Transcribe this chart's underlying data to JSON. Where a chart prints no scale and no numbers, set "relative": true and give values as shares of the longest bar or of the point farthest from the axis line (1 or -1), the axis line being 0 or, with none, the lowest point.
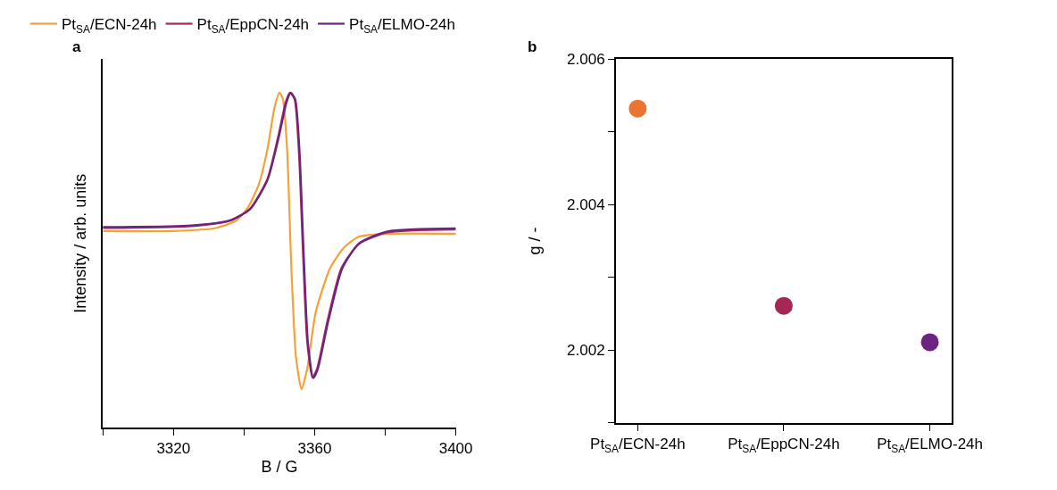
{
  "chart_data": [
    {
      "type": "line",
      "title": "a",
      "xlabel": "B / G",
      "ylabel": "Intensity / arb. units",
      "relative": true,
      "legend": "top left",
      "line_style": "solid",
      "xlim": [
        3300,
        3400
      ],
      "xticks": [
        {
          "value": 3300,
          "label": null
        },
        3320,
        {
          "value": 3340,
          "label": null
        },
        3360,
        {
          "value": 3380,
          "label": null
        },
        3400
      ],
      "series": [
        {
          "name": "Pt$_{SA}$/ECN-24h",
          "color": "#f7a035",
          "x": [
            3300,
            3319.8,
            3332,
            3337.7,
            3340.9,
            3344.1,
            3346.6,
            3348.6,
            3350,
            3351,
            3352.2,
            3353.4,
            3354.7,
            3356.3,
            3357.9,
            3360.3,
            3364.4,
            3368.4,
            3372.5,
            3380.6,
            3400
          ],
          "values": [
            0.587,
            0.587,
            0.596,
            0.618,
            0.654,
            0.724,
            0.83,
            0.954,
            1.0,
            0.981,
            0.83,
            0.477,
            0.212,
            0.115,
            0.177,
            0.345,
            0.477,
            0.539,
            0.57,
            0.579,
            0.579
          ]
        },
        {
          "name": "Pt$_{SA}$/EppCN-24h",
          "color": "#a8275a",
          "x": [
            3300,
            3323.9,
            3336,
            3341.7,
            3346.6,
            3349.8,
            3351.8,
            3353,
            3354.3,
            3355.5,
            3356.7,
            3357.9,
            3359.4,
            3360.7,
            3363.6,
            3367.6,
            3372.5,
            3380.6,
            3400
          ],
          "values": [
            0.596,
            0.601,
            0.618,
            0.654,
            0.742,
            0.875,
            0.972,
            1.0,
            0.981,
            0.83,
            0.521,
            0.256,
            0.15,
            0.177,
            0.318,
            0.477,
            0.548,
            0.583,
            0.592
          ]
        },
        {
          "name": "Pt$_{SA}$/ELMO-24h",
          "color": "#6b2580",
          "x": [
            3300,
            3323.9,
            3336,
            3341.7,
            3346.6,
            3349.9,
            3352,
            3353.2,
            3354.5,
            3355.7,
            3356.9,
            3358.1,
            3359.6,
            3360.9,
            3363.8,
            3367.8,
            3372.5,
            3380.6,
            3400
          ],
          "values": [
            0.599,
            0.603,
            0.619,
            0.652,
            0.738,
            0.87,
            0.97,
            1.0,
            0.98,
            0.83,
            0.52,
            0.255,
            0.148,
            0.175,
            0.315,
            0.475,
            0.55,
            0.586,
            0.595
          ]
        }
      ]
    },
    {
      "type": "scatter",
      "title": "b",
      "ylabel": "g / -",
      "marker": "circle",
      "legend": false,
      "categories": [
        "Pt$_{SA}$/ECN-24h",
        "Pt$_{SA}$/EppCN-24h",
        "Pt$_{SA}$/ELMO-24h"
      ],
      "values": [
        2.00532,
        2.00261,
        2.00211
      ],
      "colors": [
        "#eb7432",
        "#a62654",
        "#6b2580"
      ],
      "ylim": [
        2.001,
        2.006
      ],
      "yticks": [
        {
          "value": 2.001,
          "label": null
        },
        2.002,
        {
          "value": 2.003,
          "label": null
        },
        2.004,
        {
          "value": 2.005,
          "label": null
        },
        2.006
      ]
    }
  ]
}
